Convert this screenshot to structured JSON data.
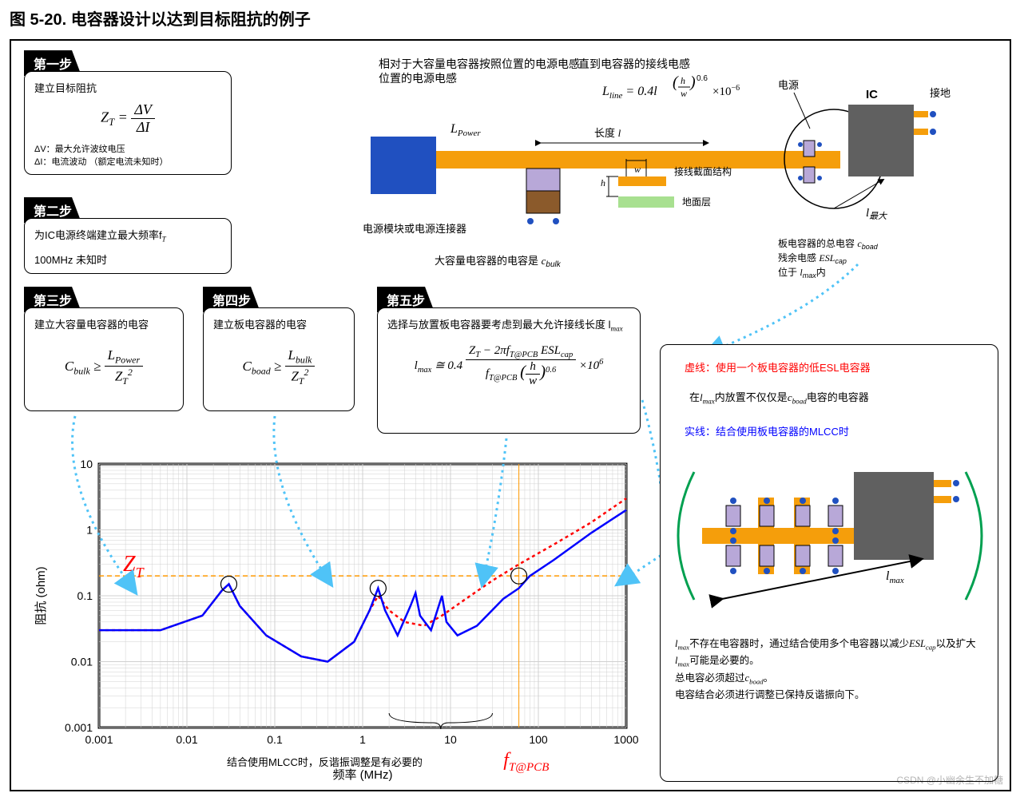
{
  "figure_title": "图 5-20. 电容器设计以达到目标阻抗的例子",
  "steps": {
    "s1": {
      "header": "第一步",
      "desc": "建立目标阻抗",
      "formula_left": "Z",
      "formula_sub": "T",
      "formula_dv": "ΔV",
      "formula_di": "ΔI",
      "note1": "ΔV：最大允许波纹电压",
      "note2": "ΔI：电流波动 （额定电流未知时）"
    },
    "s2": {
      "header": "第二步",
      "desc": "为IC电源终端建立最大频率f",
      "desc_sub": "T",
      "note": "100MHz 未知时"
    },
    "s3": {
      "header": "第三步",
      "desc": "建立大容量电容器的电容",
      "c": "C",
      "c_sub": "bulk",
      "ge": "≥",
      "l": "L",
      "l_sub": "Power",
      "z": "Z",
      "z_sub": "T"
    },
    "s4": {
      "header": "第四步",
      "desc": "建立板电容器的电容",
      "c": "C",
      "c_sub": "boad",
      "l": "L",
      "l_sub": "bulk"
    },
    "s5": {
      "header": "第五步",
      "desc": "选择与放置板电容器要考虑到最大允许接线长度 l",
      "desc_sub": "max",
      "lmax": "l",
      "lmax_sub": "max",
      "eq": "≅ 0.4",
      "zt": "Z",
      "zt_sub": "T",
      "minus": "− 2πf",
      "f_sub": "T@PCB",
      "esl": "ESL",
      "esl_sub": "cap",
      "times": "×10",
      "exp": "6",
      "denf": "f",
      "denf_sub": "T@PCB",
      "h": "h",
      "w": "w",
      "pow": "0.6"
    }
  },
  "schematic": {
    "top_label1": "相对于大容量电容器按照位置的电源电感",
    "top_label2": "直到电容器的接线电感",
    "lline_eq": "L",
    "lline_sub": "line",
    "lline_rest": " = 0.4l",
    "lline_h": "h",
    "lline_w": "w",
    "lline_pow": "0.6",
    "lline_exp": "×10",
    "lline_exp2": "−6",
    "ps_label": "电源",
    "ic_label": "IC",
    "gnd_label": "接地",
    "lpower": "L",
    "lpower_sub": "Power",
    "length_label": "长度",
    "length_sym": "l",
    "psmod_label": "电源模块或电源连接器",
    "cross_label": "接线截面结构",
    "h_label": "h",
    "w_label": "w",
    "ground_layer": "地面层",
    "bulk_label": "大容量电容器的电容是",
    "bulk_c": "c",
    "bulk_c_sub": "bulk",
    "board_cap_label1": "板电容器的总电容",
    "board_cap_c": "c",
    "board_cap_c_sub": "boad",
    "board_cap_label2": "残余电感",
    "board_esl": "ESL",
    "board_esl_sub": "cap",
    "board_cap_label3": "位于",
    "board_l": "l",
    "board_l_sub": "max",
    "board_cap_label4": "内",
    "lmax_arrow": "l",
    "lmax_arrow_sub": "最大"
  },
  "chart": {
    "type": "line",
    "xlabel": "频率 (MHz)",
    "ylabel": "阻抗 (ohm)",
    "x_ticks": [
      "0.001",
      "0.01",
      "0.1",
      "1",
      "10",
      "100",
      "1000"
    ],
    "y_ticks": [
      "0.001",
      "0.01",
      "0.1",
      "1",
      "10"
    ],
    "x_scale": "log",
    "y_scale": "log",
    "zt_label": "Z",
    "zt_sub": "T",
    "zt_color": "#ff9900",
    "zt_value": 0.2,
    "ft_label": "f",
    "ft_sub": "T@PCB",
    "ft_color": "#ff0000",
    "note": "结合使用MLCC时，反谐振调整是有必要的",
    "line_color": "#0000ff",
    "line_width": 2.5,
    "dash_color": "#ff0000",
    "dash_pattern": "4,4",
    "bg": "#ffffff",
    "grid_color": "#d0d0d0",
    "border_color": "#000000",
    "series_blue": [
      [
        0.001,
        0.03
      ],
      [
        0.005,
        0.03
      ],
      [
        0.015,
        0.05
      ],
      [
        0.025,
        0.12
      ],
      [
        0.03,
        0.15
      ],
      [
        0.04,
        0.07
      ],
      [
        0.08,
        0.025
      ],
      [
        0.2,
        0.012
      ],
      [
        0.4,
        0.01
      ],
      [
        0.8,
        0.02
      ],
      [
        1.2,
        0.06
      ],
      [
        1.5,
        0.13
      ],
      [
        1.8,
        0.06
      ],
      [
        2.5,
        0.025
      ],
      [
        3.5,
        0.07
      ],
      [
        4,
        0.11
      ],
      [
        4.5,
        0.05
      ],
      [
        6,
        0.03
      ],
      [
        8,
        0.1
      ],
      [
        9,
        0.04
      ],
      [
        12,
        0.025
      ],
      [
        20,
        0.035
      ],
      [
        40,
        0.09
      ],
      [
        60,
        0.13
      ],
      [
        80,
        0.2
      ],
      [
        150,
        0.35
      ],
      [
        400,
        0.9
      ],
      [
        1000,
        2.0
      ]
    ],
    "series_red": [
      [
        0.001,
        0.03
      ],
      [
        0.005,
        0.03
      ],
      [
        0.015,
        0.05
      ],
      [
        0.025,
        0.12
      ],
      [
        0.03,
        0.15
      ],
      [
        0.04,
        0.07
      ],
      [
        0.08,
        0.025
      ],
      [
        0.2,
        0.012
      ],
      [
        0.4,
        0.01
      ],
      [
        0.8,
        0.02
      ],
      [
        1.2,
        0.06
      ],
      [
        1.5,
        0.1
      ],
      [
        2,
        0.06
      ],
      [
        3,
        0.04
      ],
      [
        5,
        0.035
      ],
      [
        8,
        0.05
      ],
      [
        15,
        0.09
      ],
      [
        30,
        0.17
      ],
      [
        60,
        0.3
      ],
      [
        150,
        0.6
      ],
      [
        400,
        1.3
      ],
      [
        1000,
        3.0
      ]
    ],
    "circles": [
      [
        0.03,
        0.15
      ],
      [
        1.5,
        0.13
      ],
      [
        60,
        0.2
      ]
    ]
  },
  "right_panel": {
    "dash_note": "虚线：使用一个板电容器的低ESL电容器",
    "dash_color": "#ff0000",
    "place_note1": "在",
    "place_l": "l",
    "place_l_sub": "max",
    "place_note2": "内放置不仅仅是",
    "place_c": "c",
    "place_c_sub": "boad",
    "place_note3": "电容的电容器",
    "solid_note": "实线：结合使用板电容器的MLCC时",
    "solid_color": "#0000ff",
    "lmax_sym": "l",
    "lmax_sym_sub": "max",
    "bottom1a": "l",
    "bottom1a_sub": "max",
    "bottom1b": "不存在电容器时，通过结合使用多个电容器以减少",
    "bottom1c": "ESL",
    "bottom1c_sub": "cap",
    "bottom1d": "以及扩大",
    "bottom1e": "l",
    "bottom1e_sub": "max",
    "bottom1f": "可能是必要的。",
    "bottom2a": "总电容必须超过",
    "bottom2b": "c",
    "bottom2b_sub": "boad",
    "bottom2c": "。",
    "bottom3": "电容结合必须进行调整已保持反谐振向下。",
    "paren_color": "#00a050"
  },
  "colors": {
    "trace_orange": "#f59e0b",
    "cap_brown": "#8b5a2b",
    "cap_purple": "#b8a8d8",
    "ps_blue": "#2050c0",
    "ic_gray": "#606060",
    "ground_green": "#a8e090",
    "pin_gold": "#f59e0b",
    "arrow_blue": "#4fc3f7"
  },
  "watermark": "CSDN @小幽余生不加糖"
}
